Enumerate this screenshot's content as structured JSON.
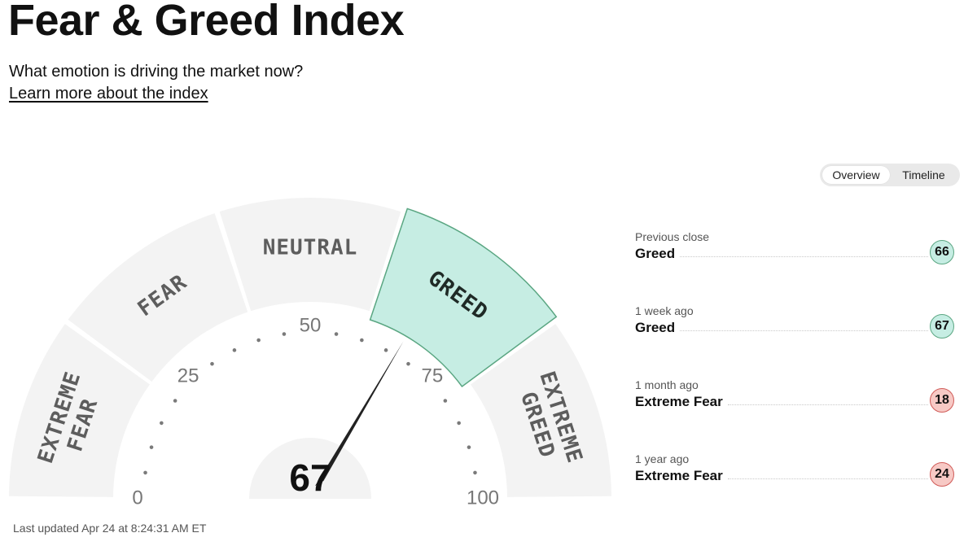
{
  "page": {
    "title": "Fear & Greed Index",
    "subtitle": "What emotion is driving the market now?",
    "learn_more": "Learn more about the index",
    "last_updated": "Last updated Apr 24 at 8:24:31 AM ET"
  },
  "toggle": {
    "overview": "Overview",
    "timeline": "Timeline",
    "active": "Overview"
  },
  "gauge": {
    "value": 67,
    "value_label": "67",
    "segments": [
      {
        "id": "extreme-fear",
        "lines": [
          "EXTREME",
          "FEAR"
        ]
      },
      {
        "id": "fear",
        "lines": [
          "FEAR"
        ]
      },
      {
        "id": "neutral",
        "lines": [
          "NEUTRAL"
        ]
      },
      {
        "id": "greed",
        "lines": [
          "GREED"
        ]
      },
      {
        "id": "extreme-greed",
        "lines": [
          "EXTREME",
          "GREED"
        ]
      }
    ],
    "active_segment": "greed",
    "tick_labels": [
      "0",
      "25",
      "50",
      "75",
      "100"
    ],
    "colors": {
      "active_fill": "#c6ede3",
      "active_stroke": "#5aa682",
      "segment_fill": "#f3f3f3"
    }
  },
  "history": [
    {
      "label": "Previous close",
      "rating": "Greed",
      "value": "66",
      "color": "#c6ede3",
      "border": "#5aa682"
    },
    {
      "label": "1 week ago",
      "rating": "Greed",
      "value": "67",
      "color": "#c6ede3",
      "border": "#5aa682"
    },
    {
      "label": "1 month ago",
      "rating": "Extreme Fear",
      "value": "18",
      "color": "#f7c9c5",
      "border": "#d05b58"
    },
    {
      "label": "1 year ago",
      "rating": "Extreme Fear",
      "value": "24",
      "color": "#f7c9c5",
      "border": "#d05b58"
    }
  ]
}
